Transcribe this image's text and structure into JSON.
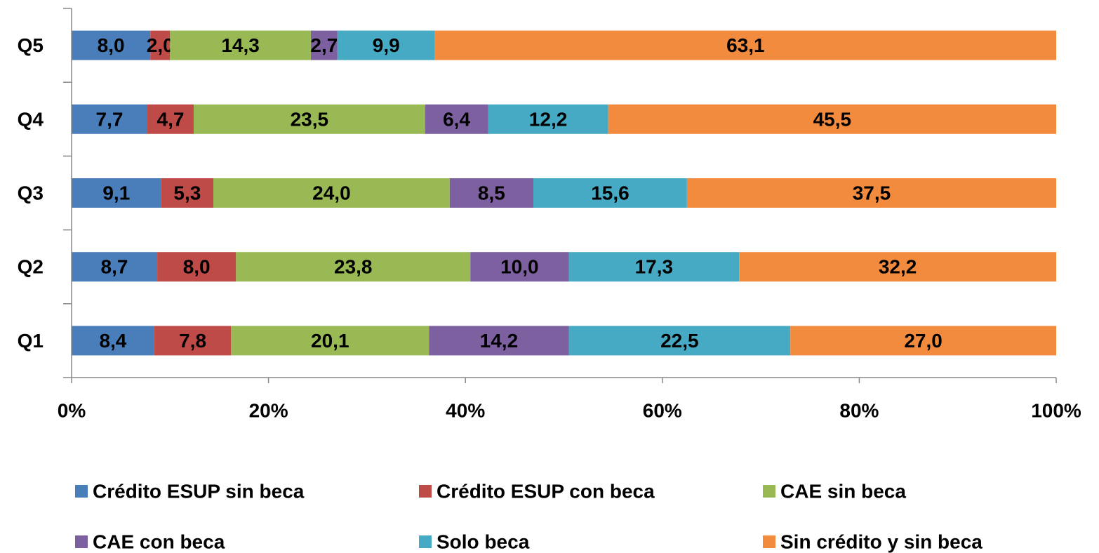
{
  "chart_data": {
    "type": "stacked-barh",
    "categories": [
      "Q1",
      "Q2",
      "Q3",
      "Q4",
      "Q5"
    ],
    "series": [
      {
        "name": "Crédito ESUP sin beca",
        "color": "#4a7ebb",
        "values": [
          8.4,
          8.7,
          9.1,
          7.7,
          8.0
        ],
        "value_labels": [
          "8,4",
          "8,7",
          "9,1",
          "7,7",
          "8,0"
        ]
      },
      {
        "name": "Crédito ESUP con beca",
        "color": "#be4b48",
        "values": [
          7.8,
          8.0,
          5.3,
          4.7,
          2.0
        ],
        "value_labels": [
          "7,8",
          "8,0",
          "5,3",
          "4,7",
          "2,0"
        ]
      },
      {
        "name": "CAE sin beca",
        "color": "#98b954",
        "values": [
          20.1,
          23.8,
          24.0,
          23.5,
          14.3
        ],
        "value_labels": [
          "20,1",
          "23,8",
          "24,0",
          "23,5",
          "14,3"
        ]
      },
      {
        "name": "CAE con beca",
        "color": "#7d60a0",
        "values": [
          14.2,
          10.0,
          8.5,
          6.4,
          2.7
        ],
        "value_labels": [
          "14,2",
          "10,0",
          "8,5",
          "6,4",
          "2,7"
        ]
      },
      {
        "name": "Solo beca",
        "color": "#46aac5",
        "values": [
          22.5,
          17.3,
          15.6,
          12.2,
          9.9
        ],
        "value_labels": [
          "22,5",
          "17,3",
          "15,6",
          "12,2",
          "9,9"
        ]
      },
      {
        "name": "Sin crédito y sin beca",
        "color": "#f38b3f",
        "values": [
          27.0,
          32.2,
          37.5,
          45.5,
          63.1
        ],
        "value_labels": [
          "27,0",
          "32,2",
          "37,5",
          "45,5",
          "63,1"
        ]
      }
    ],
    "xlim": [
      0,
      100
    ],
    "xticks": [
      {
        "value": 0,
        "label": "0%"
      },
      {
        "value": 20,
        "label": "20%"
      },
      {
        "value": 40,
        "label": "40%"
      },
      {
        "value": 60,
        "label": "60%"
      },
      {
        "value": 80,
        "label": "80%"
      },
      {
        "value": 100,
        "label": "100%"
      }
    ],
    "legend": "bottom"
  }
}
